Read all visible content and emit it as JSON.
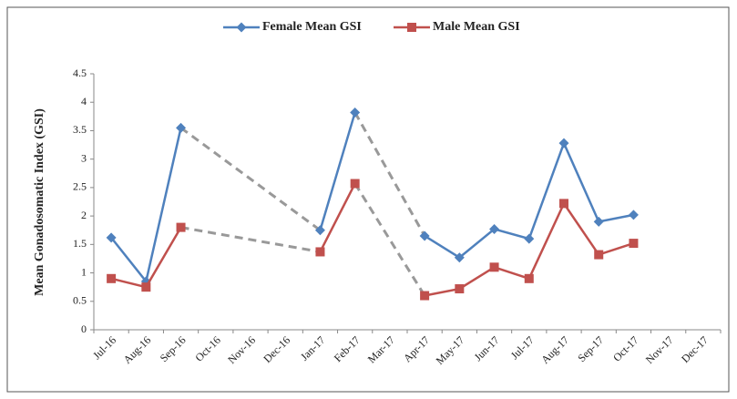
{
  "chart_data": {
    "type": "line",
    "y_label": "Mean Gonadosomatic Index (GSI)",
    "categories": [
      "Jul-16",
      "Aug-16",
      "Sep-16",
      "Oct-16",
      "Nov-16",
      "Dec-16",
      "Jan-17",
      "Feb-17",
      "Mar-17",
      "Apr-17",
      "May-17",
      "Jun-17",
      "Jul-17",
      "Aug-17",
      "Sep-17",
      "Oct-17",
      "Nov-17",
      "Dec-17"
    ],
    "series": [
      {
        "name": "Female Mean GSI",
        "color": "#4f81bd",
        "marker": "diamond",
        "values": [
          1.62,
          0.85,
          3.55,
          null,
          null,
          null,
          1.75,
          3.82,
          null,
          1.65,
          1.27,
          1.77,
          1.6,
          3.28,
          1.9,
          2.02,
          null,
          null
        ]
      },
      {
        "name": "Male Mean GSI",
        "color": "#c0504d",
        "marker": "square",
        "values": [
          0.9,
          0.75,
          1.8,
          null,
          null,
          null,
          1.37,
          2.57,
          null,
          0.6,
          0.72,
          1.1,
          0.9,
          2.22,
          1.32,
          1.52,
          null,
          null
        ]
      }
    ],
    "ylim": [
      0,
      4.5
    ],
    "yticks": [
      0,
      0.5,
      1,
      1.5,
      2,
      2.5,
      3,
      3.5,
      4,
      4.5
    ],
    "grid": false,
    "legend": "top",
    "gap_style": "dashed"
  }
}
